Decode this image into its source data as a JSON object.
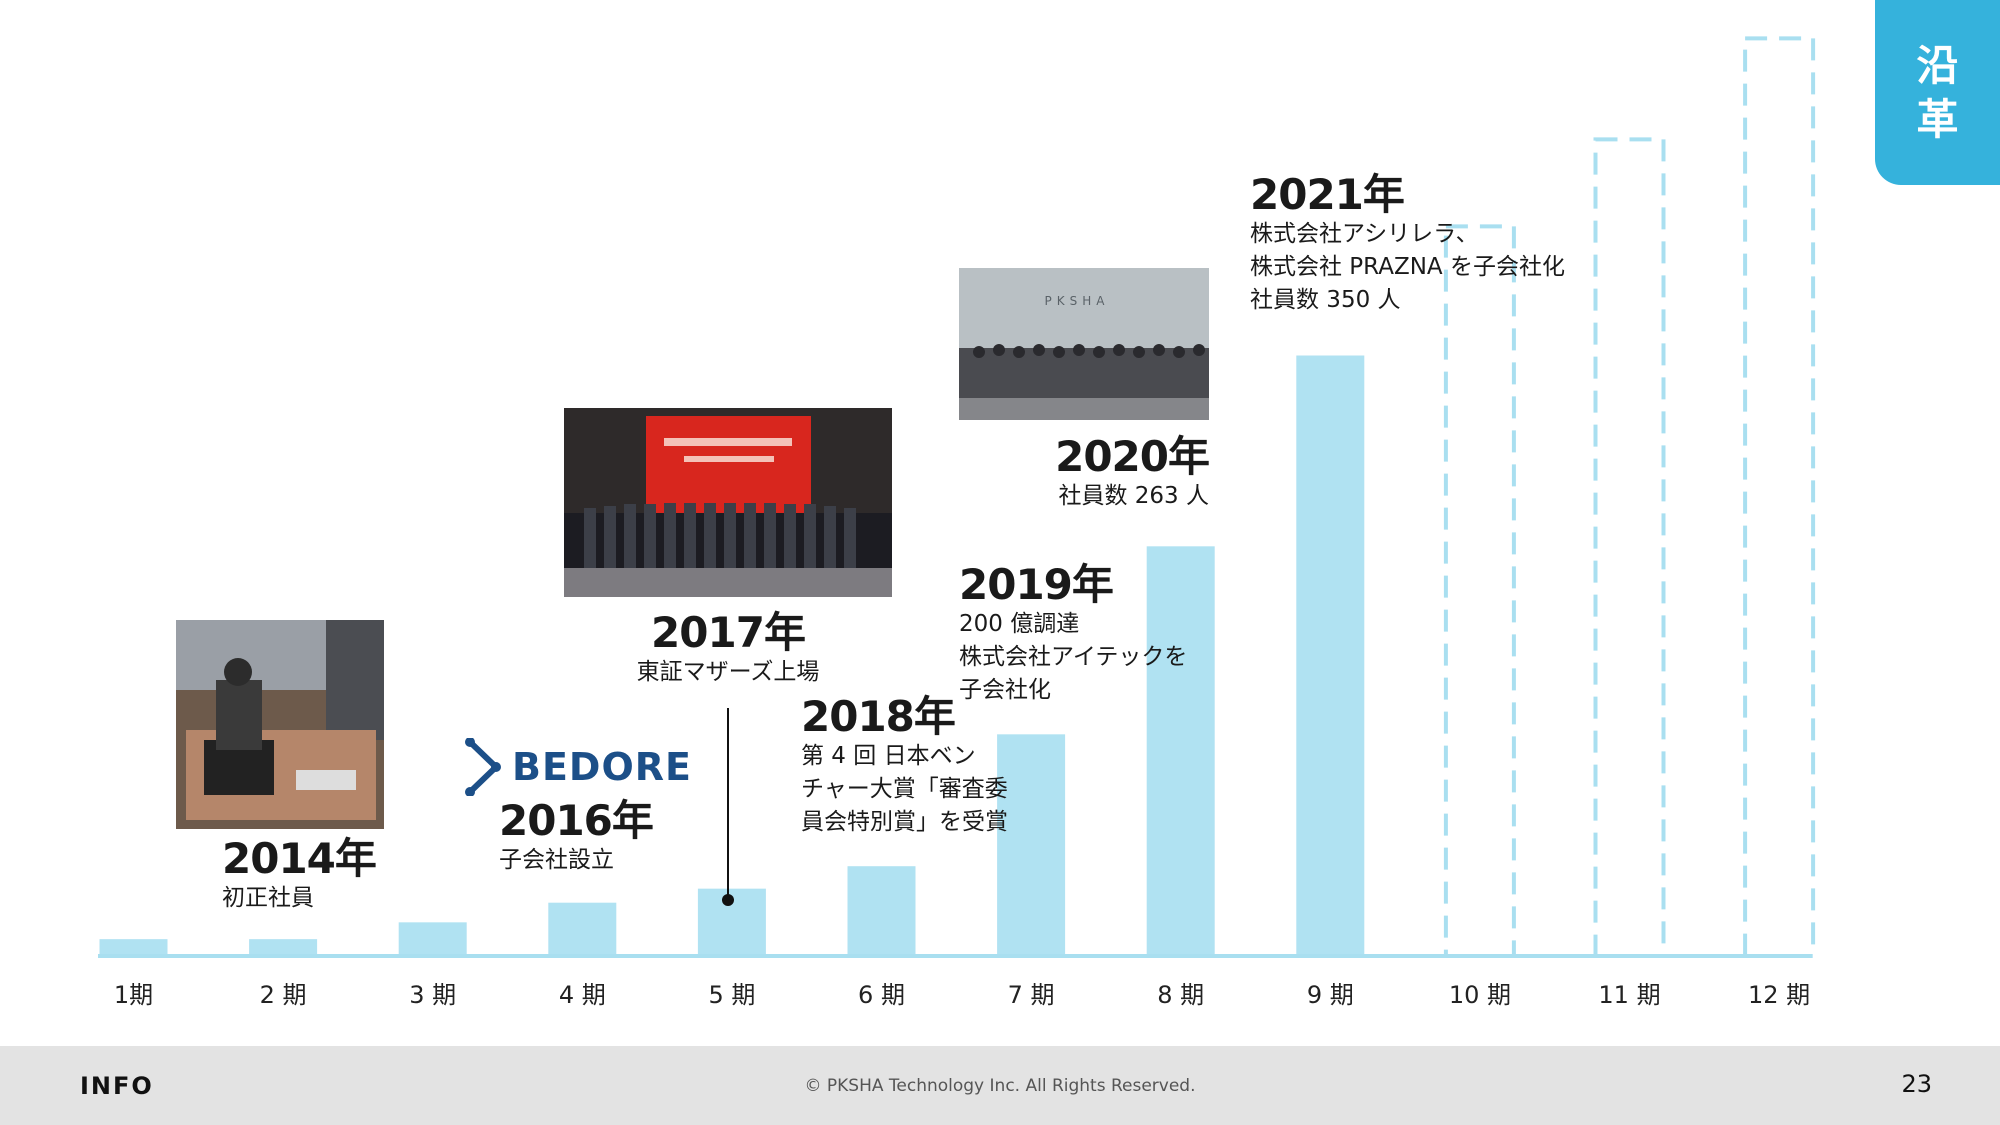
{
  "header": {
    "tab_line1": "沿",
    "tab_line2": "革"
  },
  "chart_data": {
    "type": "bar",
    "categories": [
      "1期",
      "2期",
      "3期",
      "4期",
      "5期",
      "6期",
      "7期",
      "8期",
      "9期",
      "10期",
      "11期",
      "12期"
    ],
    "values": [
      6,
      6,
      12,
      19,
      24,
      32,
      79,
      146,
      214,
      260,
      291,
      327
    ],
    "projected": [
      false,
      false,
      false,
      false,
      false,
      false,
      false,
      false,
      false,
      true,
      true,
      true
    ],
    "ylim": [
      0,
      330
    ],
    "title": "",
    "xlabel": "",
    "ylabel": "",
    "grid": false
  },
  "tick_labels": [
    "1期",
    "2 期",
    "3 期",
    "4 期",
    "5 期",
    "6 期",
    "7 期",
    "8 期",
    "9 期",
    "10 期",
    "11 期",
    "12 期"
  ],
  "annotations": [
    {
      "year": "2014年",
      "desc": "初正社員"
    },
    {
      "year": "2016年",
      "desc": "子会社設立"
    },
    {
      "year": "2017年",
      "desc": "東証マザーズ上場"
    },
    {
      "year": "2018年",
      "desc": "第 4 回 日本ベン\nチャー大賞「審査委\n員会特別賞」を受賞"
    },
    {
      "year": "2019年",
      "desc": "200 億調達\n株式会社アイテックを\n子会社化"
    },
    {
      "year": "2020年",
      "desc": "社員数 263 人"
    },
    {
      "year": "2021年",
      "desc": "株式会社アシリレラ、\n株式会社 PRAZNA を子会社化\n社員数 350 人"
    }
  ],
  "logo": {
    "text": "BEDORE"
  },
  "photos": {
    "office_2014": "office-photo",
    "ipo_2017": "ipo-ceremony-photo",
    "staff_2020": "group-photo"
  },
  "photo_sign_text": "PKSHA",
  "footer": {
    "section": "INFO",
    "copyright": "© PKSHA Technology Inc. All Rights Reserved.",
    "page": "23"
  },
  "colors": {
    "bar": "#b0e2f2",
    "accent": "#35b2dc",
    "axis": "#a9dff0",
    "logo": "#1c4f88"
  }
}
